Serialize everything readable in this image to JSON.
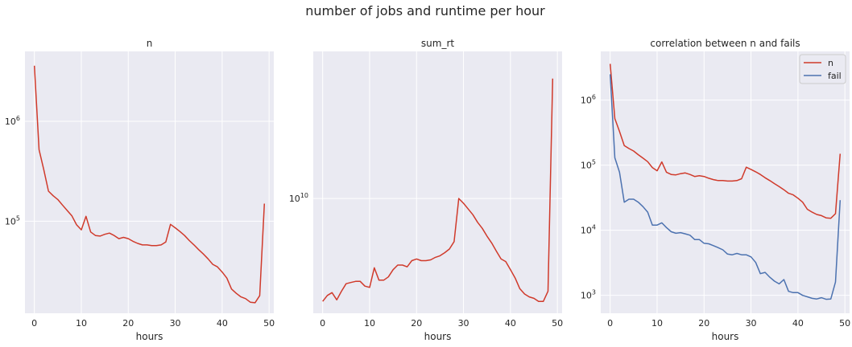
{
  "suptitle": "number of jobs and runtime per hour",
  "colors": {
    "red": "#d03a2b",
    "blue": "#4c72b0",
    "panel_bg": "#eaeaf2",
    "grid": "#ffffff"
  },
  "chart_data": [
    {
      "type": "line",
      "title": "n",
      "xlabel": "hours",
      "ylabel": "",
      "yscale": "log",
      "xlim": [
        -2,
        51
      ],
      "ylim": [
        12000,
        5000000
      ],
      "xticks": [
        0,
        10,
        20,
        30,
        40,
        50
      ],
      "yticks": [
        {
          "value": 1000000,
          "label": "10^6"
        },
        {
          "value": 100000,
          "label": "10^5"
        }
      ],
      "grid": true,
      "legend": null,
      "series": [
        {
          "name": "n",
          "color": "#d03a2b",
          "x": [
            0,
            1,
            2,
            3,
            4,
            5,
            6,
            7,
            8,
            9,
            10,
            11,
            12,
            13,
            14,
            15,
            16,
            17,
            18,
            19,
            20,
            21,
            22,
            23,
            24,
            25,
            26,
            27,
            28,
            29,
            30,
            31,
            32,
            33,
            34,
            35,
            36,
            37,
            38,
            39,
            40,
            41,
            42,
            43,
            44,
            45,
            46,
            47,
            48,
            49
          ],
          "y": [
            3600000,
            520000,
            330000,
            200000,
            180000,
            165000,
            145000,
            128000,
            113000,
            92000,
            82000,
            112000,
            78000,
            72000,
            71000,
            74000,
            76000,
            72000,
            67000,
            69000,
            67000,
            63000,
            60000,
            58000,
            58000,
            57000,
            57000,
            58000,
            62000,
            93000,
            86000,
            79000,
            72000,
            64000,
            58000,
            52000,
            47000,
            42000,
            37000,
            35000,
            31000,
            27000,
            21000,
            19000,
            17500,
            16800,
            15500,
            15300,
            18000,
            150000
          ]
        }
      ]
    },
    {
      "type": "line",
      "title": "sum_rt",
      "xlabel": "hours",
      "ylabel": "",
      "yscale": "log",
      "xlim": [
        -2,
        51
      ],
      "ylim": [
        1800000000,
        90000000000
      ],
      "xticks": [
        0,
        10,
        20,
        30,
        40,
        50
      ],
      "yticks": [
        {
          "value": 10000000000,
          "label": "10^10"
        }
      ],
      "grid": true,
      "legend": null,
      "series": [
        {
          "name": "sum_rt",
          "color": "#d03a2b",
          "x": [
            0,
            1,
            2,
            3,
            4,
            5,
            6,
            7,
            8,
            9,
            10,
            11,
            12,
            13,
            14,
            15,
            16,
            17,
            18,
            19,
            20,
            21,
            22,
            23,
            24,
            25,
            26,
            27,
            28,
            29,
            30,
            31,
            32,
            33,
            34,
            35,
            36,
            37,
            38,
            39,
            40,
            41,
            42,
            43,
            44,
            45,
            46,
            47,
            48,
            49
          ],
          "y": [
            2150000000,
            2350000000,
            2450000000,
            2200000000,
            2500000000,
            2800000000,
            2850000000,
            2900000000,
            2900000000,
            2700000000,
            2650000000,
            3550000000,
            2950000000,
            2950000000,
            3100000000,
            3450000000,
            3700000000,
            3700000000,
            3600000000,
            3950000000,
            4050000000,
            3950000000,
            3950000000,
            4000000000,
            4150000000,
            4250000000,
            4450000000,
            4700000000,
            5250000000,
            10000000000,
            9300000000,
            8550000000,
            7850000000,
            7000000000,
            6400000000,
            5700000000,
            5150000000,
            4550000000,
            4050000000,
            3900000000,
            3450000000,
            3050000000,
            2600000000,
            2400000000,
            2300000000,
            2250000000,
            2150000000,
            2150000000,
            2500000000,
            60000000000
          ]
        }
      ]
    },
    {
      "type": "line",
      "title": "correlation between n and fails",
      "xlabel": "hours",
      "ylabel": "",
      "yscale": "log",
      "xlim": [
        -2,
        51
      ],
      "ylim": [
        530,
        5600000
      ],
      "xticks": [
        0,
        10,
        20,
        30,
        40,
        50
      ],
      "yticks": [
        {
          "value": 1000000,
          "label": "10^6"
        },
        {
          "value": 100000,
          "label": "10^5"
        },
        {
          "value": 10000,
          "label": "10^4"
        },
        {
          "value": 1000,
          "label": "10^3"
        }
      ],
      "grid": true,
      "legend": "top-right",
      "series": [
        {
          "name": "n",
          "color": "#d03a2b",
          "x": [
            0,
            1,
            2,
            3,
            4,
            5,
            6,
            7,
            8,
            9,
            10,
            11,
            12,
            13,
            14,
            15,
            16,
            17,
            18,
            19,
            20,
            21,
            22,
            23,
            24,
            25,
            26,
            27,
            28,
            29,
            30,
            31,
            32,
            33,
            34,
            35,
            36,
            37,
            38,
            39,
            40,
            41,
            42,
            43,
            44,
            45,
            46,
            47,
            48,
            49
          ],
          "y": [
            3600000,
            520000,
            330000,
            200000,
            180000,
            165000,
            145000,
            128000,
            113000,
            92000,
            82000,
            112000,
            78000,
            72000,
            71000,
            74000,
            76000,
            72000,
            67000,
            69000,
            67000,
            63000,
            60000,
            58000,
            58000,
            57000,
            57000,
            58000,
            62000,
            93000,
            86000,
            79000,
            72000,
            64000,
            58000,
            52000,
            47000,
            42000,
            37000,
            35000,
            31000,
            27000,
            21000,
            19000,
            17500,
            16800,
            15500,
            15300,
            18000,
            150000
          ]
        },
        {
          "name": "fail",
          "color": "#4c72b0",
          "x": [
            0,
            1,
            2,
            3,
            4,
            5,
            6,
            7,
            8,
            9,
            10,
            11,
            12,
            13,
            14,
            15,
            16,
            17,
            18,
            19,
            20,
            21,
            22,
            23,
            24,
            25,
            26,
            27,
            28,
            29,
            30,
            31,
            32,
            33,
            34,
            35,
            36,
            37,
            38,
            39,
            40,
            41,
            42,
            43,
            44,
            45,
            46,
            47,
            48,
            49
          ],
          "y": [
            2500000,
            130000,
            78000,
            27000,
            30000,
            30000,
            27000,
            23000,
            19000,
            12000,
            12000,
            13000,
            11000,
            9500,
            9000,
            9200,
            8800,
            8400,
            7200,
            7200,
            6300,
            6200,
            5800,
            5400,
            5000,
            4300,
            4200,
            4400,
            4200,
            4200,
            3900,
            3200,
            2150,
            2250,
            1900,
            1650,
            1500,
            1750,
            1150,
            1100,
            1100,
            1000,
            950,
            900,
            880,
            920,
            870,
            880,
            1600,
            29000
          ]
        }
      ]
    }
  ]
}
